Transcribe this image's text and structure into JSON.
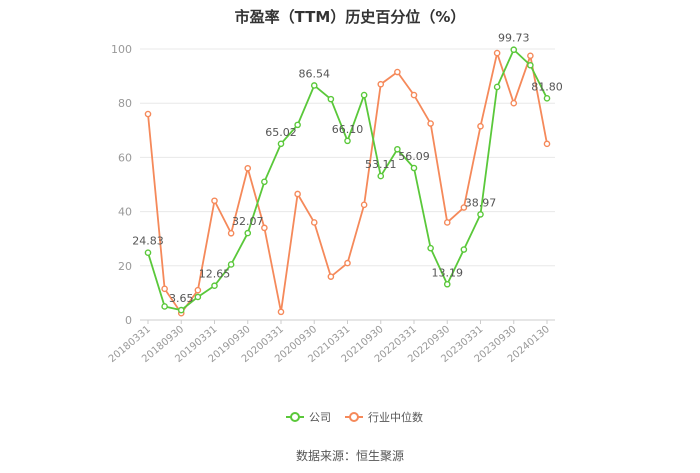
{
  "chart_data": {
    "type": "line",
    "title": "市盈率（TTM）历史百分位（%）",
    "source": "数据来源：恒生聚源",
    "ylim": [
      0,
      100
    ],
    "yticks": [
      0,
      20,
      40,
      60,
      80,
      100
    ],
    "x_tick_labels": [
      "20180331",
      "20180930",
      "20190331",
      "20190930",
      "20200331",
      "20200930",
      "20210331",
      "20210930",
      "20220331",
      "20220930",
      "20230331",
      "20230930",
      "20240130"
    ],
    "x": [
      "20180331",
      "20180630",
      "20180930",
      "20181231",
      "20190331",
      "20190630",
      "20190930",
      "20191231",
      "20200331",
      "20200630",
      "20200930",
      "20201231",
      "20210331",
      "20210630",
      "20210930",
      "20211231",
      "20220331",
      "20220630",
      "20220930",
      "20221231",
      "20230331",
      "20230630",
      "20230930",
      "20231231",
      "20240130"
    ],
    "grid": true,
    "legend_position": "bottom",
    "series": [
      {
        "name": "公司",
        "color": "#5ac83a",
        "values": [
          24.83,
          5.0,
          3.65,
          8.5,
          12.65,
          20.5,
          32.07,
          51.0,
          65.02,
          72.0,
          86.54,
          81.5,
          66.1,
          83.0,
          53.11,
          63.0,
          56.09,
          26.5,
          13.19,
          26.0,
          38.97,
          86.0,
          99.73,
          94.0,
          81.8
        ],
        "labels": {
          "0": "24.83",
          "2": "3.65",
          "4": "12.65",
          "6": "32.07",
          "8": "65.02",
          "10": "86.54",
          "12": "66.10",
          "14": "53.11",
          "16": "56.09",
          "18": "13.19",
          "20": "38.97",
          "22": "99.73",
          "24": "81.80"
        }
      },
      {
        "name": "行业中位数",
        "color": "#f5895a",
        "values": [
          76.0,
          11.5,
          2.5,
          11.0,
          44.0,
          32.0,
          56.0,
          34.0,
          3.0,
          46.5,
          36.0,
          16.0,
          21.0,
          42.5,
          87.0,
          91.5,
          83.0,
          72.5,
          36.0,
          41.5,
          71.5,
          98.5,
          80.0,
          97.5,
          65.0
        ]
      }
    ]
  }
}
